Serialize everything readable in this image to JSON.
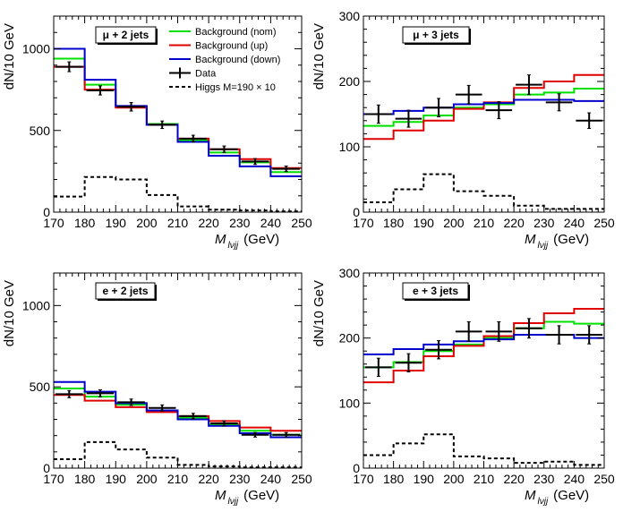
{
  "legend": [
    {
      "label": "Background (nom)",
      "color": "#00e000",
      "style": "line"
    },
    {
      "label": "Background (up)",
      "color": "#e00000",
      "style": "line"
    },
    {
      "label": "Background (down)",
      "color": "#0000cc",
      "style": "line"
    },
    {
      "label": "Data",
      "color": "#000000",
      "style": "errorbar"
    },
    {
      "label": "Higgs M=190 × 10",
      "color": "#000000",
      "style": "dashed"
    }
  ],
  "chart_data": [
    {
      "type": "histogram",
      "title": "μ + 2 jets",
      "ylabel": "dN/10 GeV",
      "xlabel_main": "M",
      "xlabel_sub": "lνjj",
      "xlabel_unit": "(GeV)",
      "x_edges": [
        170,
        180,
        190,
        200,
        210,
        220,
        230,
        240,
        250
      ],
      "xlim": [
        170,
        250
      ],
      "ylim": [
        0,
        1200
      ],
      "xticks": [
        "170",
        "180",
        "190",
        "200",
        "210",
        "220",
        "230",
        "240",
        "250"
      ],
      "yticks": [
        {
          "v": 0,
          "label": "0"
        },
        {
          "v": 500,
          "label": "500"
        },
        {
          "v": 1000,
          "label": "1000"
        }
      ],
      "series": [
        {
          "name": "Background (nom)",
          "values": [
            940,
            780,
            645,
            540,
            440,
            365,
            305,
            245
          ]
        },
        {
          "name": "Background (up)",
          "values": [
            890,
            750,
            640,
            535,
            450,
            385,
            325,
            270
          ]
        },
        {
          "name": "Background (down)",
          "values": [
            1000,
            810,
            650,
            535,
            430,
            345,
            280,
            220
          ]
        }
      ],
      "data": {
        "y": [
          890,
          745,
          645,
          535,
          450,
          385,
          310,
          265
        ],
        "err": [
          30,
          28,
          26,
          23,
          21,
          20,
          18,
          17
        ]
      },
      "signal": [
        95,
        215,
        200,
        105,
        35,
        15,
        10,
        5
      ]
    },
    {
      "type": "histogram",
      "title": "μ + 3 jets",
      "ylabel": "dN/10 GeV",
      "xlabel_main": "M",
      "xlabel_sub": "lνjj",
      "xlabel_unit": "(GeV)",
      "x_edges": [
        170,
        180,
        190,
        200,
        210,
        220,
        230,
        240,
        250
      ],
      "xlim": [
        170,
        250
      ],
      "ylim": [
        0,
        300
      ],
      "xticks": [
        "170",
        "180",
        "190",
        "200",
        "210",
        "220",
        "230",
        "240",
        "250"
      ],
      "yticks": [
        {
          "v": 0,
          "label": "0"
        },
        {
          "v": 100,
          "label": "100"
        },
        {
          "v": 200,
          "label": "200"
        },
        {
          "v": 300,
          "label": "300"
        }
      ],
      "series": [
        {
          "name": "Background (nom)",
          "values": [
            132,
            138,
            148,
            160,
            165,
            180,
            183,
            189
          ]
        },
        {
          "name": "Background (up)",
          "values": [
            112,
            125,
            140,
            158,
            168,
            190,
            200,
            210
          ]
        },
        {
          "name": "Background (down)",
          "values": [
            150,
            155,
            160,
            165,
            167,
            172,
            172,
            170
          ]
        }
      ],
      "data": {
        "y": [
          150,
          143,
          160,
          180,
          156,
          195,
          168,
          140
        ],
        "err": [
          14,
          13,
          14,
          14,
          13,
          15,
          13,
          12
        ]
      },
      "signal": [
        15,
        35,
        58,
        32,
        25,
        10,
        5,
        5
      ]
    },
    {
      "type": "histogram",
      "title": "e + 2 jets",
      "ylabel": "dN/10 GeV",
      "xlabel_main": "M",
      "xlabel_sub": "lνjj",
      "xlabel_unit": "(GeV)",
      "x_edges": [
        170,
        180,
        190,
        200,
        210,
        220,
        230,
        240,
        250
      ],
      "xlim": [
        170,
        250
      ],
      "ylim": [
        0,
        1200
      ],
      "xticks": [
        "170",
        "180",
        "190",
        "200",
        "210",
        "220",
        "230",
        "240",
        "250"
      ],
      "yticks": [
        {
          "v": 0,
          "label": "0"
        },
        {
          "v": 500,
          "label": "500"
        },
        {
          "v": 1000,
          "label": "1000"
        }
      ],
      "series": [
        {
          "name": "Background (nom)",
          "values": [
            490,
            440,
            390,
            350,
            310,
            270,
            230,
            205
          ]
        },
        {
          "name": "Background (up)",
          "values": [
            450,
            415,
            375,
            345,
            320,
            290,
            250,
            230
          ]
        },
        {
          "name": "Background (down)",
          "values": [
            530,
            470,
            400,
            355,
            300,
            260,
            215,
            190
          ]
        }
      ],
      "data": {
        "y": [
          455,
          460,
          405,
          370,
          320,
          275,
          205,
          205
        ],
        "err": [
          22,
          22,
          20,
          19,
          17,
          16,
          14,
          14
        ]
      },
      "signal": [
        55,
        160,
        115,
        65,
        20,
        10,
        5,
        5
      ]
    },
    {
      "type": "histogram",
      "title": "e + 3 jets",
      "ylabel": "dN/10 GeV",
      "xlabel_main": "M",
      "xlabel_sub": "lνjj",
      "xlabel_unit": "(GeV)",
      "x_edges": [
        170,
        180,
        190,
        200,
        210,
        220,
        230,
        240,
        250
      ],
      "xlim": [
        170,
        250
      ],
      "ylim": [
        0,
        300
      ],
      "xticks": [
        "170",
        "180",
        "190",
        "200",
        "210",
        "220",
        "230",
        "240",
        "250"
      ],
      "yticks": [
        {
          "v": 0,
          "label": "0"
        },
        {
          "v": 100,
          "label": "100"
        },
        {
          "v": 200,
          "label": "200"
        },
        {
          "v": 300,
          "label": "300"
        }
      ],
      "series": [
        {
          "name": "Background (nom)",
          "values": [
            155,
            163,
            180,
            190,
            200,
            215,
            225,
            222
          ]
        },
        {
          "name": "Background (up)",
          "values": [
            132,
            150,
            172,
            188,
            203,
            223,
            238,
            245
          ]
        },
        {
          "name": "Background (down)",
          "values": [
            175,
            183,
            190,
            195,
            198,
            205,
            205,
            200
          ]
        }
      ],
      "data": {
        "y": [
          155,
          162,
          182,
          210,
          210,
          215,
          205,
          205
        ],
        "err": [
          14,
          14,
          14,
          15,
          15,
          15,
          14,
          14
        ]
      },
      "signal": [
        20,
        38,
        52,
        18,
        15,
        8,
        10,
        5
      ]
    }
  ]
}
